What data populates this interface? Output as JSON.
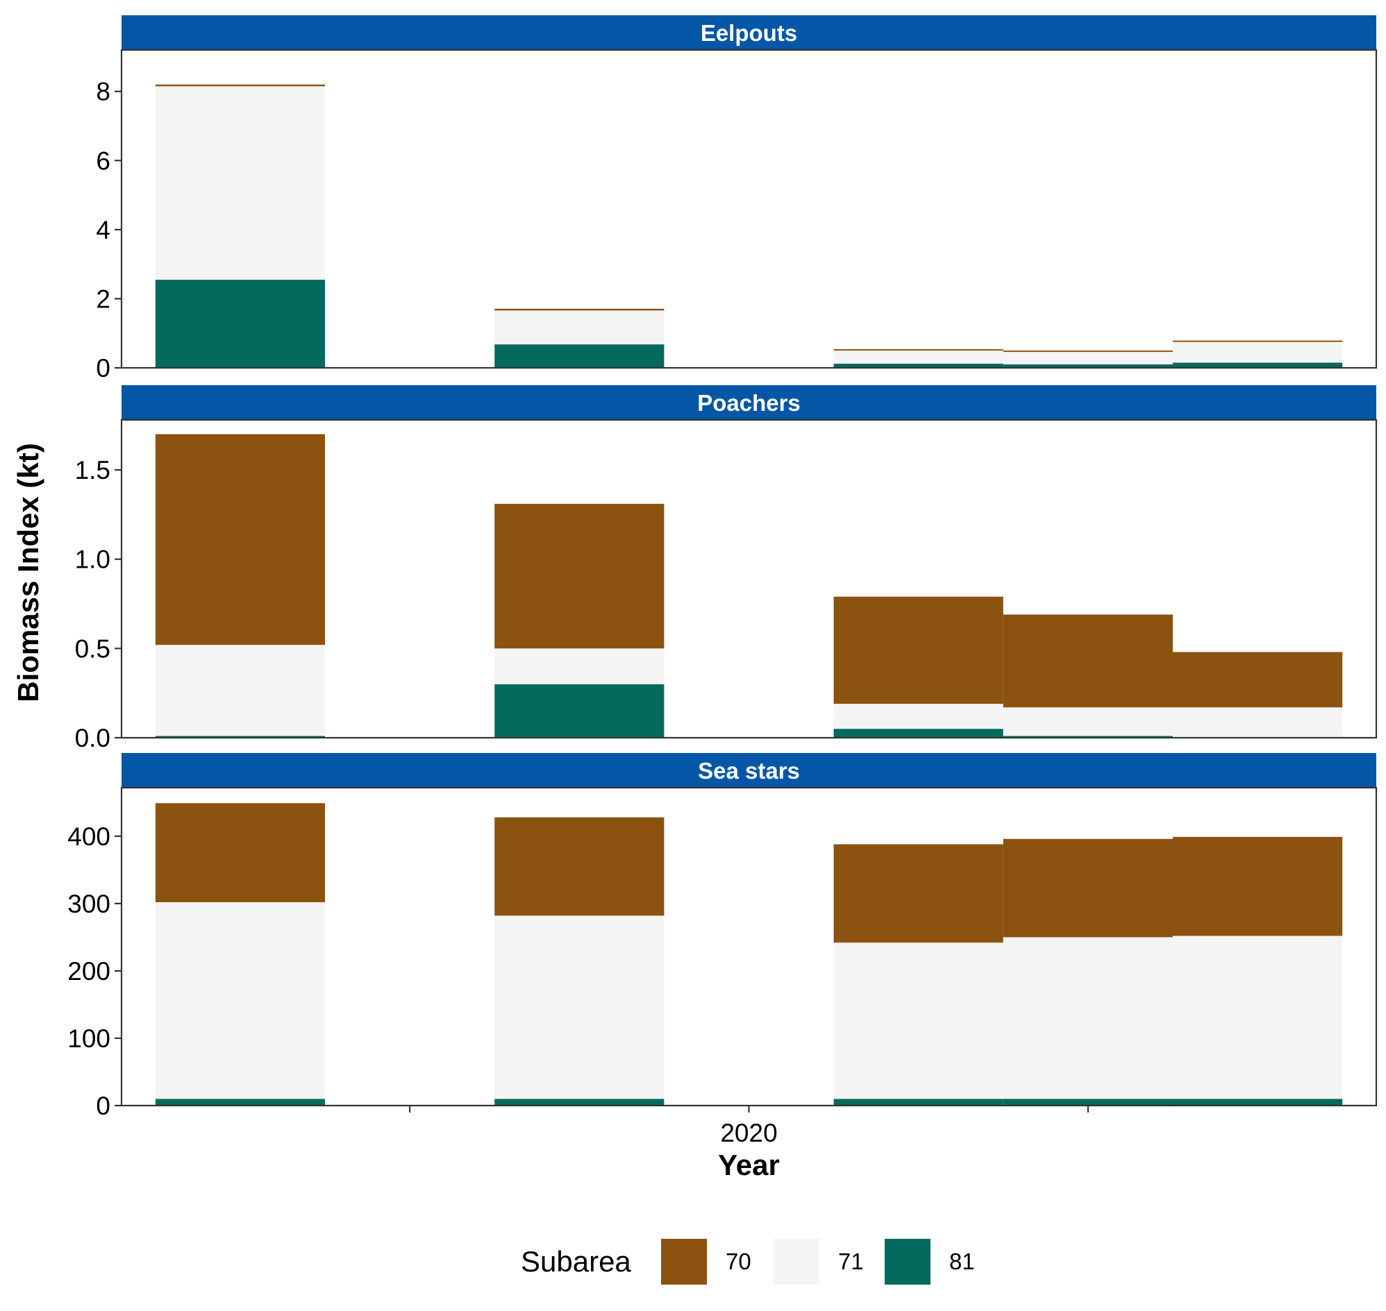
{
  "chart_data": {
    "type": "bar",
    "stacked": true,
    "faceted": true,
    "xlabel": "Year",
    "ylabel": "Biomass Index (kt)",
    "x_tick_labels": [
      "",
      "2020",
      ""
    ],
    "legend": {
      "title": "Subarea",
      "position": "bottom",
      "entries": [
        {
          "label": "70",
          "color": "#8B5210"
        },
        {
          "label": "71",
          "color": "#F4F4F4"
        },
        {
          "label": "81",
          "color": "#046A5E"
        }
      ]
    },
    "strip_color": "#0457A7",
    "grid": false,
    "bar_count": 5,
    "bar_positions": [
      0,
      2,
      4,
      5,
      6
    ],
    "panels": [
      {
        "title": "Eelpouts",
        "ylim": [
          0,
          9.2
        ],
        "yticks": [
          "0",
          "2",
          "4",
          "6",
          "8"
        ],
        "ytick_values": [
          0,
          2,
          4,
          6,
          8
        ],
        "series": [
          {
            "name": "81",
            "values": [
              2.55,
              0.68,
              0.12,
              0.1,
              0.15
            ]
          },
          {
            "name": "71",
            "values": [
              5.6,
              0.98,
              0.38,
              0.36,
              0.6
            ]
          },
          {
            "name": "70",
            "values": [
              0.05,
              0.05,
              0.04,
              0.04,
              0.04
            ]
          }
        ]
      },
      {
        "title": "Poachers",
        "ylim": [
          0,
          1.78
        ],
        "yticks": [
          "0.0",
          "0.5",
          "1.0",
          "1.5"
        ],
        "ytick_values": [
          0,
          0.5,
          1.0,
          1.5
        ],
        "series": [
          {
            "name": "81",
            "values": [
              0.01,
              0.3,
              0.05,
              0.01,
              0.0
            ]
          },
          {
            "name": "71",
            "values": [
              0.51,
              0.2,
              0.14,
              0.16,
              0.17
            ]
          },
          {
            "name": "70",
            "values": [
              1.18,
              0.81,
              0.6,
              0.52,
              0.31
            ]
          }
        ]
      },
      {
        "title": "Sea stars",
        "ylim": [
          0,
          472
        ],
        "yticks": [
          "0",
          "100",
          "200",
          "300",
          "400"
        ],
        "ytick_values": [
          0,
          100,
          200,
          300,
          400
        ],
        "series": [
          {
            "name": "81",
            "values": [
              10,
              10,
              10,
              10,
              10
            ]
          },
          {
            "name": "71",
            "values": [
              292,
              272,
              232,
              240,
              242
            ]
          },
          {
            "name": "70",
            "values": [
              147,
              146,
              146,
              146,
              147
            ]
          }
        ]
      }
    ]
  }
}
